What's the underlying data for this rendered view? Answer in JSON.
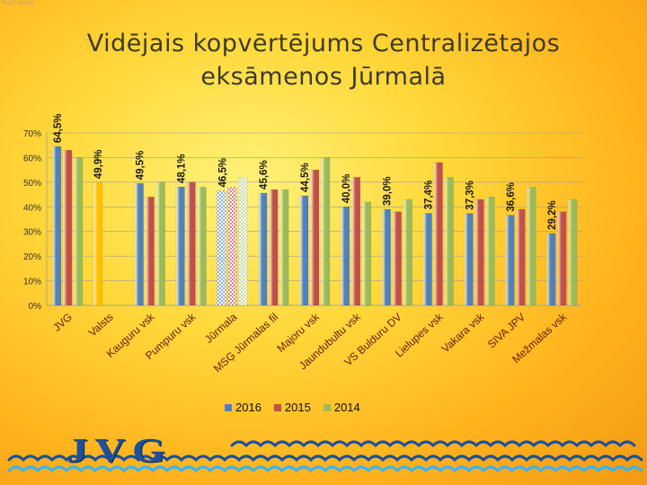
{
  "watermark": "Right design",
  "title": {
    "line1": "Vidējais kopvērtējums Centralizētajos",
    "line2": "eksāmenos Jūrmalā"
  },
  "logo": "JVG",
  "colors": {
    "s2016": "#4f81bd",
    "s2015": "#c0504d",
    "s2014": "#9bbb59",
    "valsts": "#ffc000",
    "axis_text": "#333333",
    "grid": "#9e9e9e",
    "wave_dark": "#1a4fa0",
    "wave_light": "#38b4f0"
  },
  "chart_data": {
    "type": "bar",
    "title": "",
    "xlabel": "",
    "ylabel": "",
    "ylim": [
      0,
      0.7
    ],
    "yticks": [
      "0%",
      "10%",
      "20%",
      "30%",
      "40%",
      "50%",
      "60%",
      "70%"
    ],
    "categories": [
      "JVG",
      "Valsts",
      "Kauguru vsk",
      "Pumpuru vsk",
      "Jūrmala",
      "MSĢ Jūrmalas fil",
      "Majoru vsk",
      "Jaundubultu vsk",
      "VS Bulduru DV",
      "Lielupes vsk",
      "Vakara vsk",
      "SIVA JPV",
      "Mežmalas vsk"
    ],
    "series": [
      {
        "name": "2016",
        "values": [
          0.645,
          0.499,
          0.495,
          0.481,
          0.465,
          0.456,
          0.445,
          0.4,
          0.39,
          0.374,
          0.373,
          0.366,
          0.292
        ]
      },
      {
        "name": "2015",
        "values": [
          0.63,
          null,
          0.44,
          0.5,
          0.48,
          0.47,
          0.55,
          0.52,
          0.38,
          0.58,
          0.43,
          0.39,
          0.38
        ]
      },
      {
        "name": "2014",
        "values": [
          0.6,
          null,
          0.5,
          0.48,
          0.52,
          0.47,
          0.6,
          0.42,
          0.43,
          0.52,
          0.44,
          0.48,
          0.43
        ]
      }
    ],
    "data_labels": [
      "64,5%",
      "49,9%",
      "49,5%",
      "48,1%",
      "46,5%",
      "45,6%",
      "44,5%",
      "40,0%",
      "39,0%",
      "37,4%",
      "37,3%",
      "36,6%",
      "29,2%"
    ]
  },
  "legend": [
    {
      "label": "2016",
      "color": "#4f81bd"
    },
    {
      "label": "2015",
      "color": "#c0504d"
    },
    {
      "label": "2014",
      "color": "#9bbb59"
    }
  ]
}
